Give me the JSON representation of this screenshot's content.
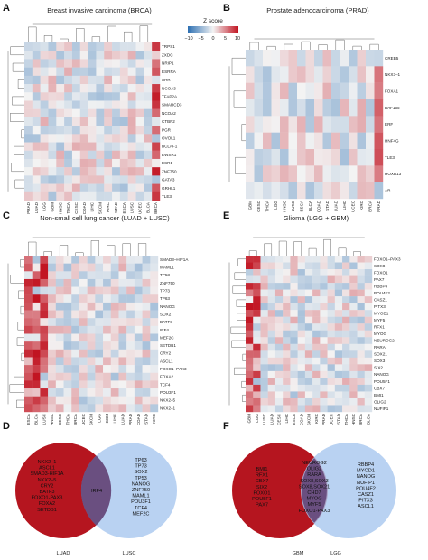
{
  "chart_data": [
    {
      "type": "heatmap",
      "panel": "A",
      "title": "Breast invasive carcinoma (BRCA)",
      "rows": [
        "TRPS1",
        "ZXDC",
        "NRIP1",
        "ESRRA",
        "AHR",
        "NCOA3",
        "TFAP2A",
        "SMARCD3",
        "NCOA2",
        "CTBP2",
        "PGR",
        "OVOL1",
        "BCLAF1",
        "EWSR1",
        "ESR1",
        "ZNF750",
        "GATA3",
        "GRHL1",
        "TLE3"
      ],
      "columns": [
        "PRAD",
        "LUAD",
        "LGG",
        "GBM",
        "HNSC",
        "THCA",
        "CESC",
        "COAD",
        "LIHC",
        "SKCM",
        "KIRC",
        "STAD",
        "ESCA",
        "LUSC",
        "UCEC",
        "BLCA",
        "BRCA"
      ]
    },
    {
      "type": "heatmap",
      "panel": "B",
      "title": "Prostate adenocarcinoma (PRAD)",
      "rows": [
        "CREB5",
        "NKX3–1",
        "FOXA1",
        "BAF155",
        "ERF",
        "HNF4G",
        "TLE3",
        "HOXB13",
        "AR"
      ],
      "columns": [
        "GBM",
        "CESC",
        "THCA",
        "LGG",
        "HNSC",
        "LUSC",
        "ESCA",
        "BLCA",
        "COAD",
        "STAD",
        "LUAD",
        "LIHC",
        "UCEC",
        "KIRC",
        "BRCA",
        "PRAD"
      ]
    },
    {
      "type": "heatmap",
      "panel": "C",
      "title": "Non-small cell lung cancer (LUAD + LUSC)",
      "rows": [
        "SMAD3–HIF1A",
        "MAML1",
        "TP53",
        "ZNF750",
        "TP73",
        "TP63",
        "NANOG",
        "SOX2",
        "BATF3",
        "IRF4",
        "MEF2C",
        "SETDB1",
        "CRY2",
        "ASCL1",
        "FOXO1–PAX3",
        "FOXA2",
        "TCF4",
        "POU3F1",
        "NKX2–5",
        "NKX2–1"
      ],
      "columns": [
        "ESCA",
        "BLCA",
        "LUSC",
        "HNSC",
        "CESC",
        "THCA",
        "BRCA",
        "UCEC",
        "SKCM",
        "LGG",
        "GBM",
        "LIHC",
        "LUAD",
        "PRAD",
        "COAD",
        "STAD",
        "KIRC"
      ]
    },
    {
      "type": "heatmap",
      "panel": "E",
      "title": "Glioma (LGG + GBM)",
      "rows": [
        "FOXO1–PAX3",
        "SOX8",
        "FOXO1",
        "PAX7",
        "RBBP4",
        "POU4F2",
        "CASZ1",
        "PITX3",
        "MYOD1",
        "MYF5",
        "RFX1",
        "MYOG",
        "NEUROG2",
        "RARA",
        "SOX21",
        "SOX3",
        "SIX2",
        "NANOG",
        "POU5F1",
        "CBX7",
        "BMI1",
        "OLIG2",
        "NUFIP1"
      ],
      "columns": [
        "GBM",
        "LGG",
        "LUSC",
        "LUAD",
        "CESC",
        "LIHC",
        "ESCA",
        "COAD",
        "SKCM",
        "KIRC",
        "PRAD",
        "UCEC",
        "STAD",
        "THCA",
        "HNSC",
        "BRCA",
        "BLCA"
      ]
    }
  ],
  "colorbar": {
    "title": "Z score",
    "ticks": [
      "−10",
      "−5",
      "0",
      "5",
      "10"
    ],
    "colors": {
      "low": "#2c6fb2",
      "mid": "#f3f3f3",
      "high": "#c1121f"
    }
  },
  "venns": [
    {
      "panel": "D",
      "left_label": "LUAD",
      "right_label": "LUSC",
      "left_color": "#b5151f",
      "right_color": "#a7c7ef",
      "left_only": [
        "NKX2–1",
        "ASCL1",
        "SMAD3-HIF1A",
        "NKX2–5",
        "CRY2",
        "BATF3",
        "FOXO1-PAX3",
        "FOXA2",
        "SETDB1"
      ],
      "shared": [
        "IRF4"
      ],
      "right_only": [
        "TP63",
        "TP73",
        "SOX2",
        "TP53",
        "NANOG",
        "ZNF750",
        "MAML1",
        "POU3F1",
        "TCF4",
        "MEF2C"
      ]
    },
    {
      "panel": "F",
      "left_label": "GBM",
      "right_label": "LGG",
      "left_color": "#b5151f",
      "right_color": "#a7c7ef",
      "left_only": [
        "BMI1",
        "RFX1",
        "CBX7",
        "SIX2",
        "FOXO1",
        "POU5F1",
        "PAX7"
      ],
      "shared": [
        "NEUROG2",
        "OLIG2",
        "RARA",
        "SOX8,SOX3",
        "SOX8,SOX21",
        "CHD7",
        "MYOG",
        "MYF5",
        "FOXO1-PAX3"
      ],
      "right_only": [
        "RBBP4",
        "MYOD1",
        "NANOG",
        "NUFIP1",
        "POU4F2",
        "CASZ1",
        "PITX3",
        "ASCL1"
      ]
    }
  ],
  "panel_letters": [
    "A",
    "B",
    "C",
    "D",
    "E",
    "F"
  ]
}
